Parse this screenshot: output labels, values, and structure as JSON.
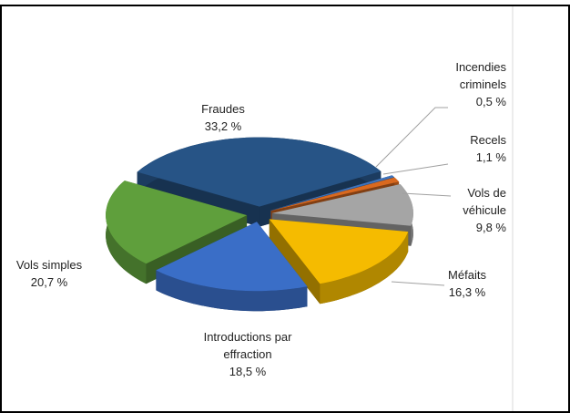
{
  "chart_data": {
    "type": "pie",
    "categories": [
      "Fraudes",
      "Incendies criminels",
      "Recels",
      "Vols de véhicule",
      "Méfaits",
      "Introductions par effraction",
      "Vols simples"
    ],
    "values": [
      33.2,
      0.5,
      1.1,
      9.8,
      16.3,
      18.5,
      20.7
    ],
    "value_labels": [
      "33,2 %",
      "0,5 %",
      "1,1 %",
      "9,8 %",
      "16,3 %",
      "18,5 %",
      "20,7 %"
    ],
    "colors": [
      "#275486",
      "#3f74bd",
      "#d9691f",
      "#a5a5a5",
      "#f5bb00",
      "#3a6ec7",
      "#5f9f3c"
    ]
  }
}
